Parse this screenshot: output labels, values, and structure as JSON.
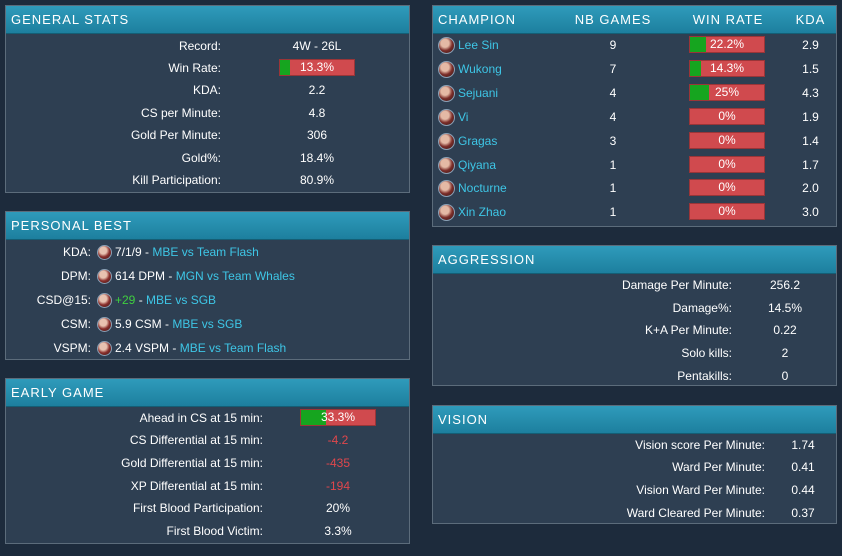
{
  "general_stats": {
    "title": "GENERAL STATS",
    "rows": [
      {
        "label": "Record:",
        "value": "4W - 26L"
      },
      {
        "label": "Win Rate:",
        "value": "13.3%"
      },
      {
        "label": "KDA:",
        "value": "2.2"
      },
      {
        "label": "CS per Minute:",
        "value": "4.8"
      },
      {
        "label": "Gold Per Minute:",
        "value": "306"
      },
      {
        "label": "Gold%:",
        "value": "18.4%"
      },
      {
        "label": "Kill Participation:",
        "value": "80.9%"
      }
    ],
    "win_rate_fraction": 0.133
  },
  "personal_best": {
    "title": "PERSONAL BEST",
    "rows": [
      {
        "label": "KDA:",
        "stat": "7/1/9",
        "match": "MBE vs Team Flash",
        "icon": "champion-portrait-icon"
      },
      {
        "label": "DPM:",
        "stat": "614 DPM",
        "match": "MGN vs Team Whales",
        "icon": "champion-portrait-icon"
      },
      {
        "label": "CSD@15:",
        "stat": "+29",
        "match": "MBE vs SGB",
        "icon": "champion-portrait-icon"
      },
      {
        "label": "CSM:",
        "stat": "5.9 CSM",
        "match": "MBE vs SGB",
        "icon": "champion-portrait-icon"
      },
      {
        "label": "VSPM:",
        "stat": "2.4 VSPM",
        "match": "MBE vs Team Flash",
        "icon": "champion-portrait-icon"
      }
    ],
    "separator": " - "
  },
  "early_game": {
    "title": "EARLY GAME",
    "rows": [
      {
        "label": "Ahead in CS at 15 min:",
        "value": "33.3%"
      },
      {
        "label": "CS Differential at 15 min:",
        "value": "-4.2"
      },
      {
        "label": "Gold Differential at 15 min:",
        "value": "-435"
      },
      {
        "label": "XP Differential at 15 min:",
        "value": "-194"
      },
      {
        "label": "First Blood Participation:",
        "value": "20%"
      },
      {
        "label": "First Blood Victim:",
        "value": "3.3%"
      }
    ],
    "ahead_fraction": 0.333
  },
  "champions": {
    "headers": {
      "champion": "CHAMPION",
      "games": "NB GAMES",
      "win_rate": "WIN RATE",
      "kda": "KDA"
    },
    "rows": [
      {
        "name": "Lee Sin",
        "games": "9",
        "win_rate": "22.2%",
        "wr_fraction": 0.222,
        "kda": "2.9"
      },
      {
        "name": "Wukong",
        "games": "7",
        "win_rate": "14.3%",
        "wr_fraction": 0.143,
        "kda": "1.5"
      },
      {
        "name": "Sejuani",
        "games": "4",
        "win_rate": "25%",
        "wr_fraction": 0.25,
        "kda": "4.3"
      },
      {
        "name": "Vi",
        "games": "4",
        "win_rate": "0%",
        "wr_fraction": 0,
        "kda": "1.9"
      },
      {
        "name": "Gragas",
        "games": "3",
        "win_rate": "0%",
        "wr_fraction": 0,
        "kda": "1.4"
      },
      {
        "name": "Qiyana",
        "games": "1",
        "win_rate": "0%",
        "wr_fraction": 0,
        "kda": "1.7"
      },
      {
        "name": "Nocturne",
        "games": "1",
        "win_rate": "0%",
        "wr_fraction": 0,
        "kda": "2.0"
      },
      {
        "name": "Xin Zhao",
        "games": "1",
        "win_rate": "0%",
        "wr_fraction": 0,
        "kda": "3.0"
      }
    ]
  },
  "aggression": {
    "title": "AGGRESSION",
    "rows": [
      {
        "label": "Damage Per Minute:",
        "value": "256.2"
      },
      {
        "label": "Damage%:",
        "value": "14.5%"
      },
      {
        "label": "K+A Per Minute:",
        "value": "0.22"
      },
      {
        "label": "Solo kills:",
        "value": "2"
      },
      {
        "label": "Pentakills:",
        "value": "0"
      }
    ]
  },
  "vision": {
    "title": "VISION",
    "rows": [
      {
        "label": "Vision score Per Minute:",
        "value": "1.74"
      },
      {
        "label": "Ward Per Minute:",
        "value": "0.41"
      },
      {
        "label": "Vision Ward Per Minute:",
        "value": "0.44"
      },
      {
        "label": "Ward Cleared Per Minute:",
        "value": "0.37"
      }
    ]
  },
  "colors": {
    "header": "#2490b0",
    "panel": "#2e3f52",
    "page": "#1d2b3c",
    "bar_red": "#d04a4e",
    "bar_green": "#16a51f",
    "link": "#3ec6e6"
  }
}
